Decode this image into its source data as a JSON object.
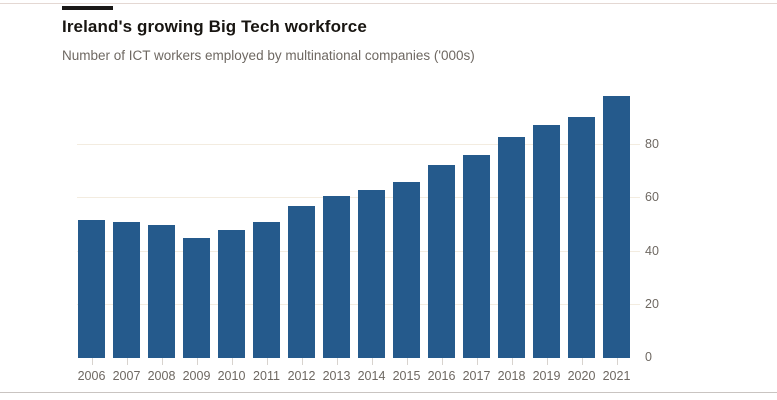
{
  "chart_data": {
    "type": "bar",
    "title": "Ireland's growing Big Tech workforce",
    "subtitle": "Number of ICT workers employed by multinational companies ('000s)",
    "categories": [
      "2006",
      "2007",
      "2008",
      "2009",
      "2010",
      "2011",
      "2012",
      "2013",
      "2014",
      "2015",
      "2016",
      "2017",
      "2018",
      "2019",
      "2020",
      "2021"
    ],
    "values": [
      52,
      51,
      50,
      45,
      48,
      51,
      57,
      61,
      63,
      66,
      72.5,
      76.5,
      83,
      87.5,
      90.5,
      98.5
    ],
    "xlabel": "",
    "ylabel": "",
    "ylim": [
      0,
      100
    ],
    "yticks": [
      0,
      20,
      40,
      60,
      80
    ],
    "grid": true,
    "y_axis_side": "right",
    "legend": "none",
    "bar_color": "#255A8C",
    "gridline_color": "#F3ECE0",
    "axis_text_color": "#6E6862",
    "title_color": "#181511",
    "accent_bar_color": "#1A1817"
  }
}
